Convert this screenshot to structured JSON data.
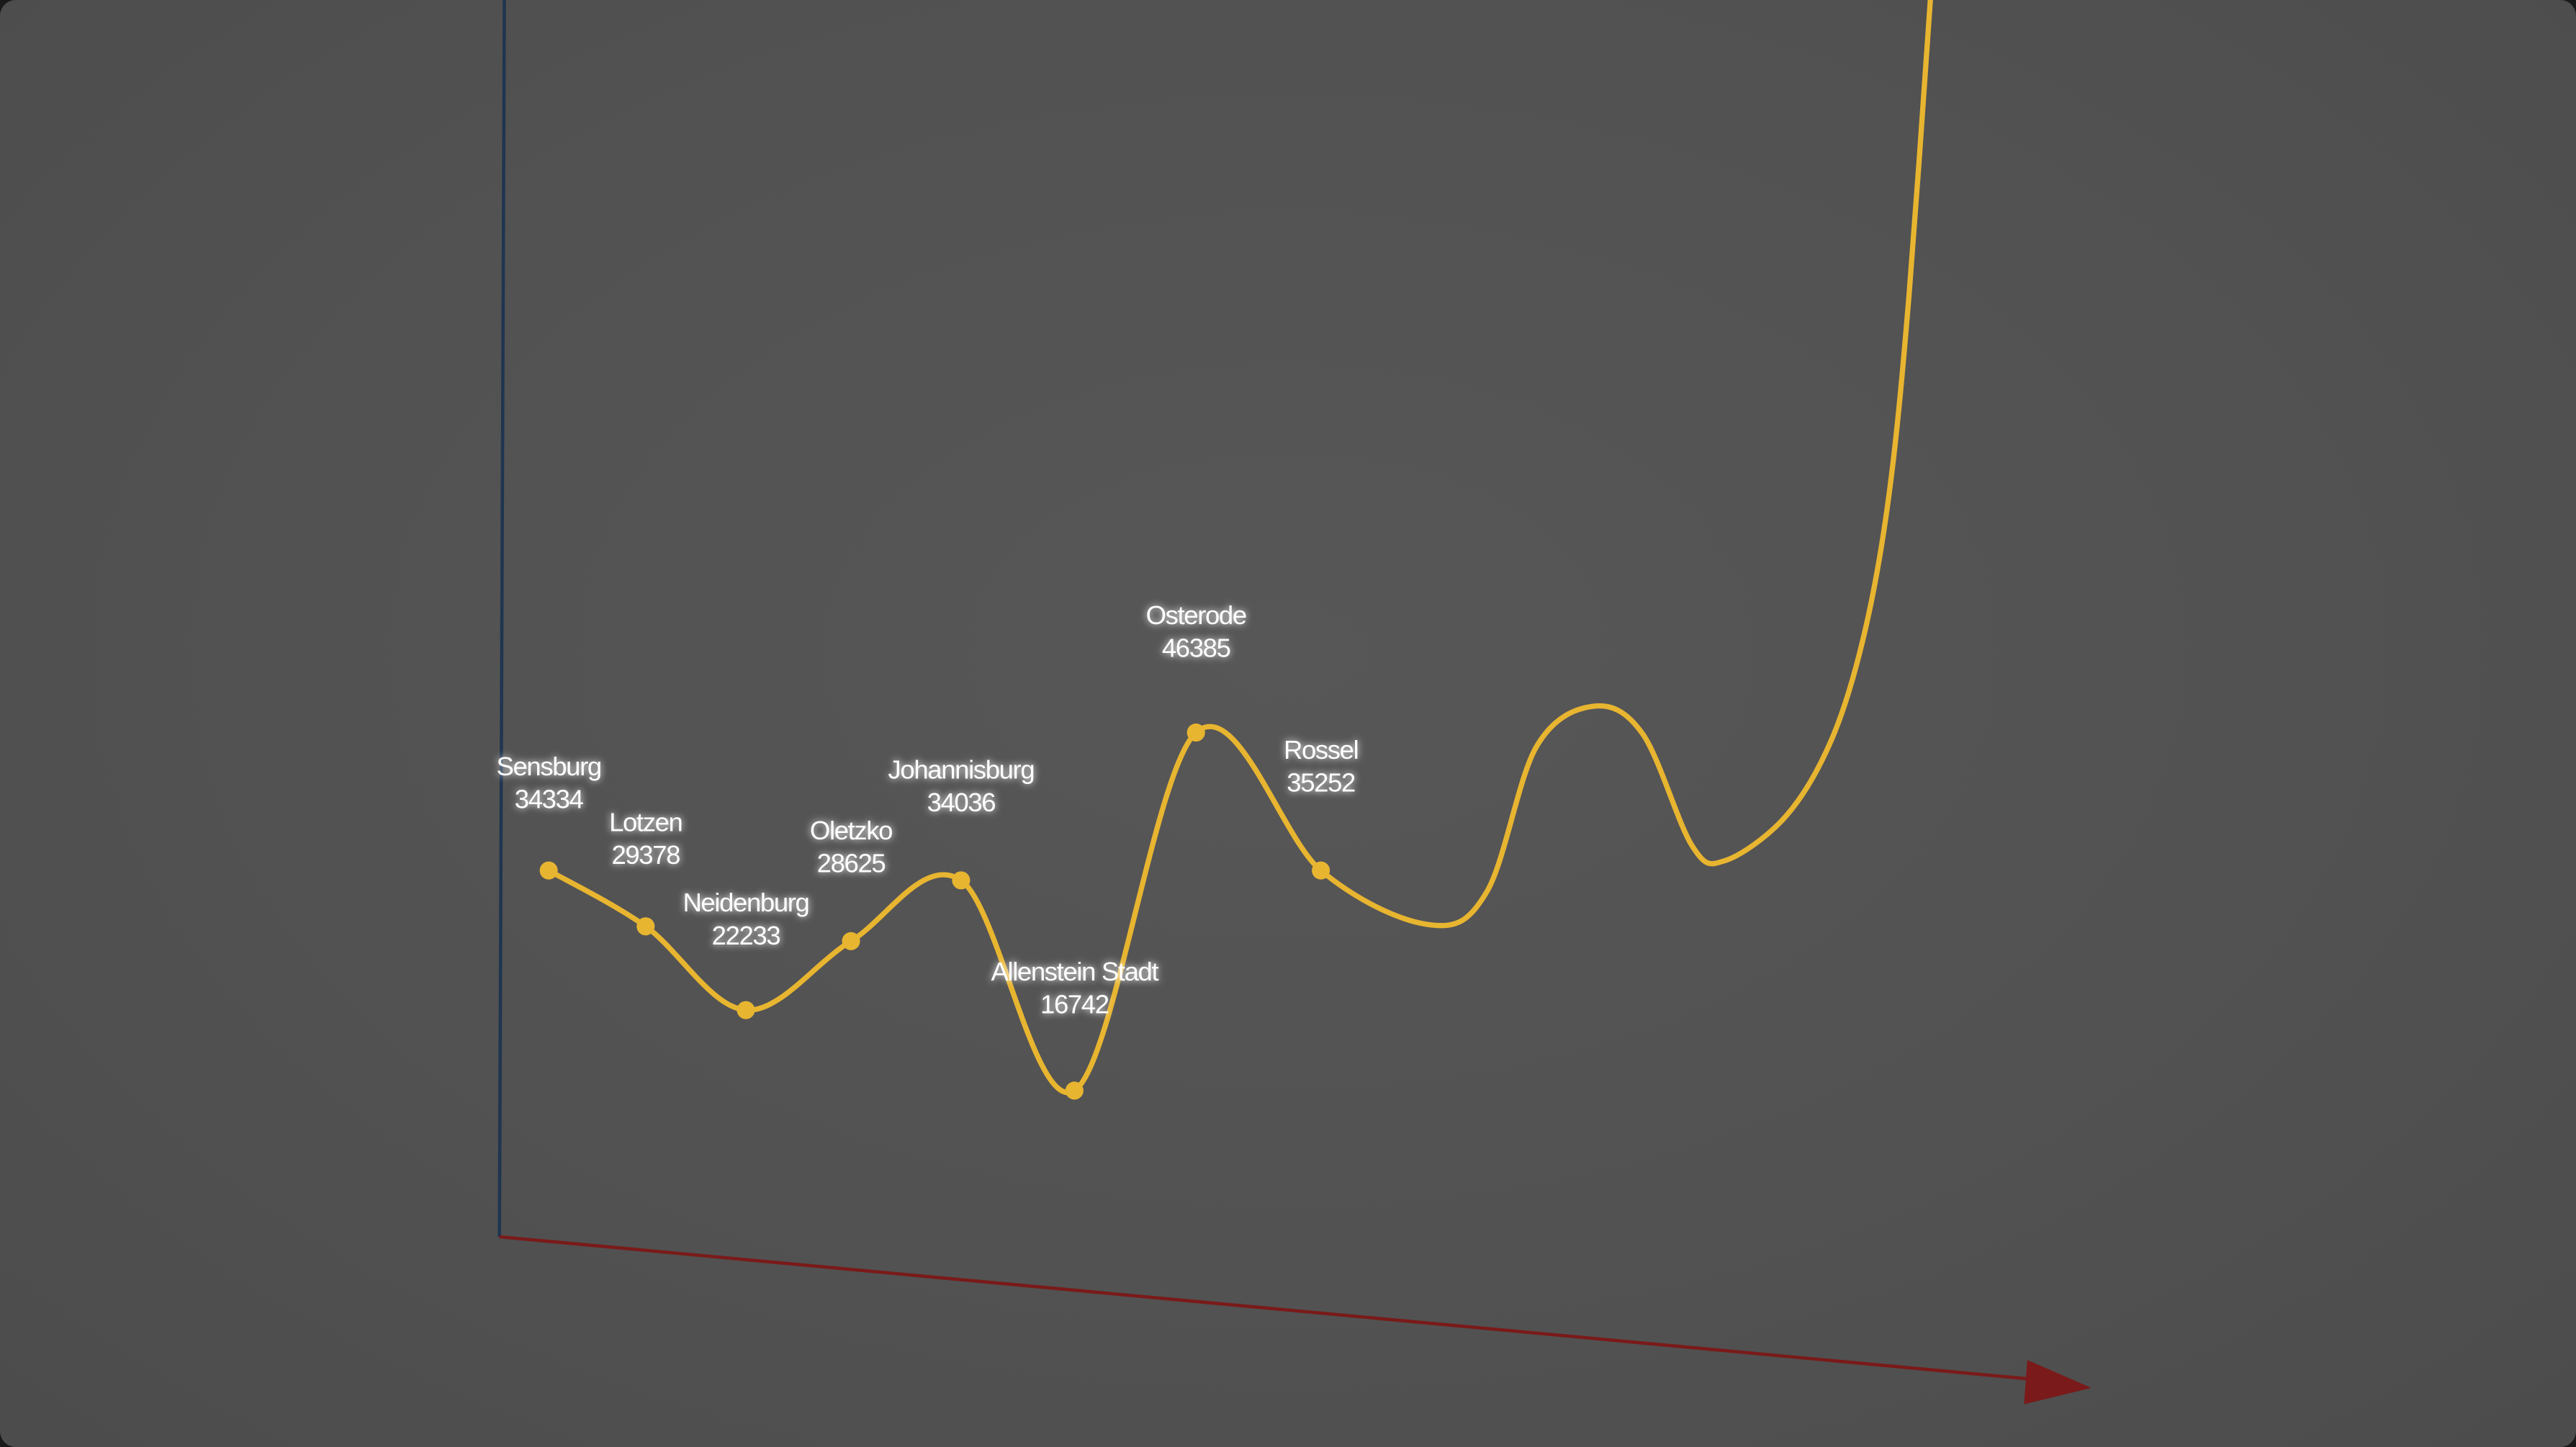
{
  "chart_data": {
    "type": "line",
    "title": "",
    "xlabel": "",
    "ylabel": "",
    "categories": [
      "Sensburg",
      "Lotzen",
      "Neidenburg",
      "Oletzko",
      "Johannisburg",
      "Allenstein Stadt",
      "Osterode",
      "Rossel"
    ],
    "values": [
      34334,
      29378,
      22233,
      28625,
      34036,
      16742,
      46385,
      35252
    ],
    "grid": false,
    "legend": "none",
    "colors": {
      "line": "#e8b530",
      "y_axis": "#1f3550",
      "x_axis": "#7a1a1a",
      "background": "#525252",
      "label": "#ffffff"
    },
    "style": "3d perspective, smooth curve continuing off-chart to the top right"
  }
}
